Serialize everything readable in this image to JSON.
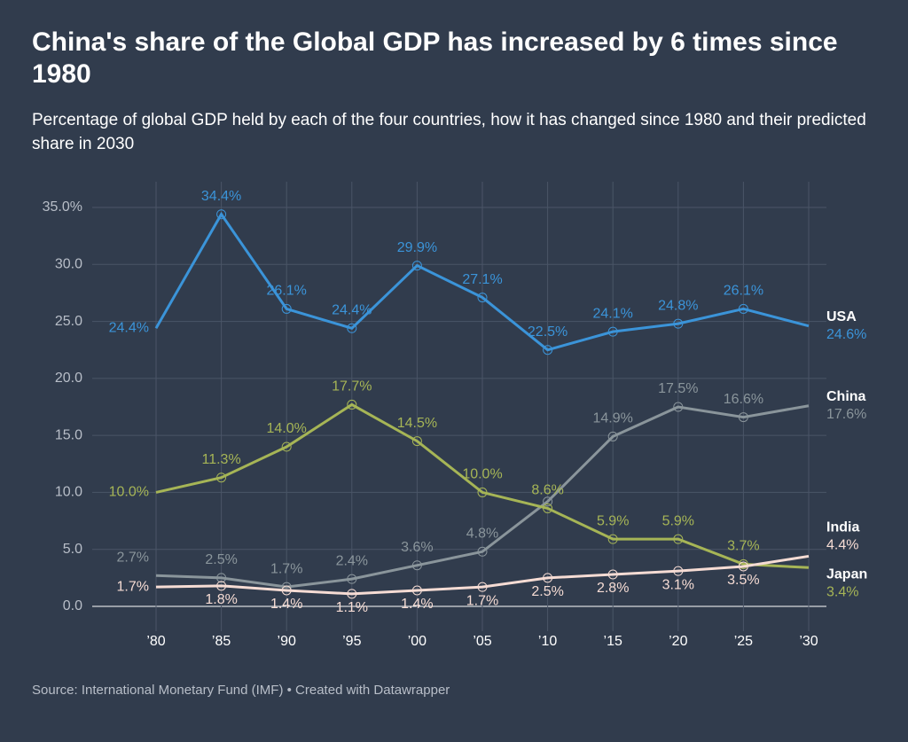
{
  "chart_data": {
    "type": "line",
    "title": "China's share of the Global GDP has increased by 6 times since 1980",
    "subtitle": "Percentage of global GDP held by each of the four countries, how it has changed since 1980 and their predicted share in 2030",
    "source": "Source: International Monetary Fund (IMF) • Created with Datawrapper",
    "categories": [
      "’80",
      "’85",
      "’90",
      "’95",
      "’00",
      "’05",
      "’10",
      "’15",
      "’20",
      "’25",
      "’30"
    ],
    "ylim": [
      0,
      35
    ],
    "yticks": [
      {
        "value": 0,
        "label": "0.0"
      },
      {
        "value": 5,
        "label": "5.0"
      },
      {
        "value": 10,
        "label": "10.0"
      },
      {
        "value": 15,
        "label": "15.0"
      },
      {
        "value": 20,
        "label": "20.0"
      },
      {
        "value": 25,
        "label": "25.0"
      },
      {
        "value": 30,
        "label": "30.0"
      },
      {
        "value": 35,
        "label": "35.0%"
      }
    ],
    "grid": true,
    "series": [
      {
        "name": "USA",
        "color": "#3b94d9",
        "values": [
          24.4,
          34.4,
          26.1,
          24.4,
          29.9,
          27.1,
          22.5,
          24.1,
          24.8,
          26.1,
          24.6
        ],
        "value_labels": [
          "24.4%",
          "34.4%",
          "26.1%",
          "24.4%",
          "29.9%",
          "27.1%",
          "22.5%",
          "24.1%",
          "24.8%",
          "26.1%",
          "24.6%"
        ]
      },
      {
        "name": "China",
        "color": "#8a959b",
        "values": [
          2.7,
          2.5,
          1.7,
          2.4,
          3.6,
          4.8,
          9.2,
          14.9,
          17.5,
          16.6,
          17.6
        ],
        "value_labels": [
          "2.7%",
          "2.5%",
          "1.7%",
          "2.4%",
          "3.6%",
          "4.8%",
          null,
          "14.9%",
          "17.5%",
          "16.6%",
          "17.6%"
        ]
      },
      {
        "name": "Japan",
        "color": "#a6b556",
        "values": [
          10.0,
          11.3,
          14.0,
          17.7,
          14.5,
          10.0,
          8.6,
          5.9,
          5.9,
          3.7,
          3.4
        ],
        "value_labels": [
          "10.0%",
          "11.3%",
          "14.0%",
          "17.7%",
          "14.5%",
          "10.0%",
          "8.6%",
          "5.9%",
          "5.9%",
          "3.7%",
          "3.4%"
        ]
      },
      {
        "name": "India",
        "color": "#f6dcd4",
        "values": [
          1.7,
          1.8,
          1.4,
          1.1,
          1.4,
          1.7,
          2.5,
          2.8,
          3.1,
          3.5,
          4.4
        ],
        "value_labels": [
          "1.7%",
          "1.8%",
          "1.4%",
          "1.1%",
          "1.4%",
          "1.7%",
          "2.5%",
          "2.8%",
          "3.1%",
          "3.5%",
          "4.4%"
        ]
      }
    ]
  }
}
